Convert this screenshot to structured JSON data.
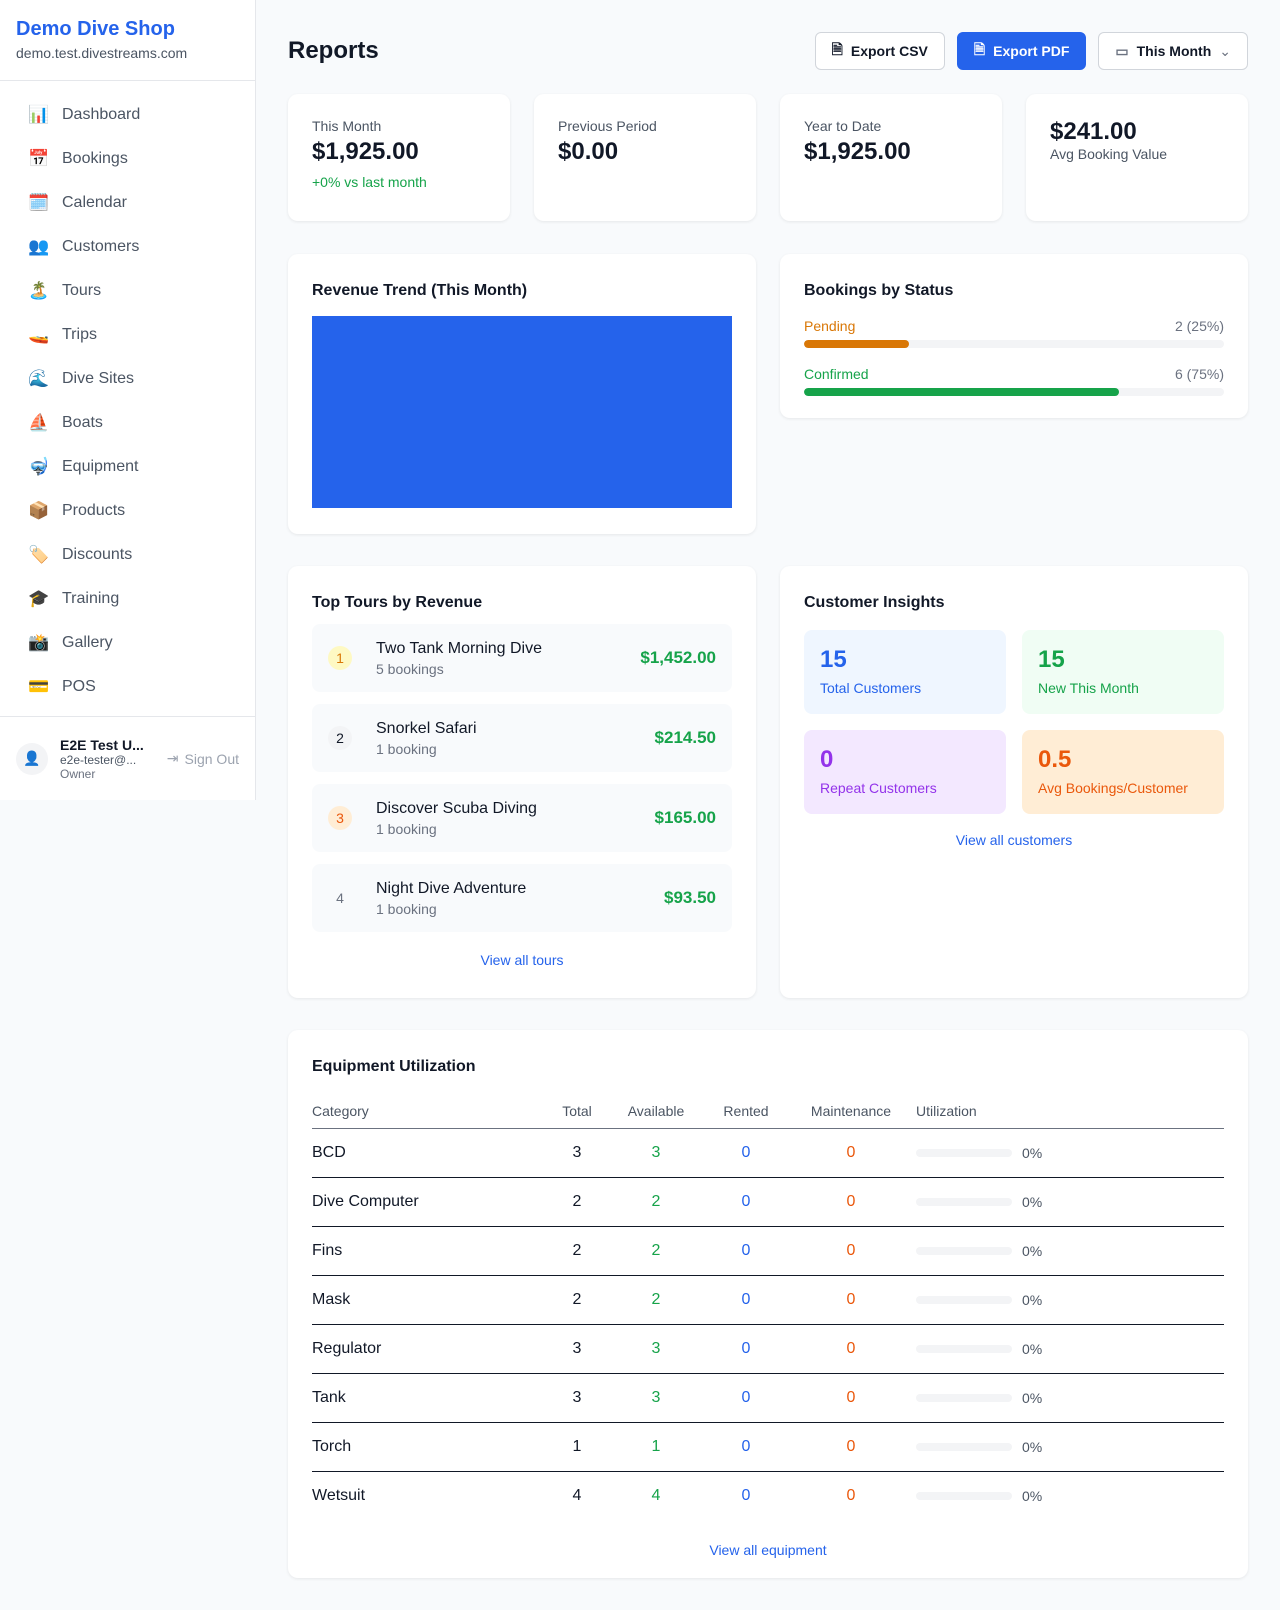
{
  "sidebar": {
    "brand": "Demo Dive Shop",
    "domain": "demo.test.divestreams.com",
    "items": [
      {
        "icon": "📊",
        "label": "Dashboard"
      },
      {
        "icon": "📅",
        "label": "Bookings"
      },
      {
        "icon": "🗓️",
        "label": "Calendar"
      },
      {
        "icon": "👥",
        "label": "Customers"
      },
      {
        "icon": "🏝️",
        "label": "Tours"
      },
      {
        "icon": "🚤",
        "label": "Trips"
      },
      {
        "icon": "🌊",
        "label": "Dive Sites"
      },
      {
        "icon": "⛵",
        "label": "Boats"
      },
      {
        "icon": "🤿",
        "label": "Equipment"
      },
      {
        "icon": "📦",
        "label": "Products"
      },
      {
        "icon": "🏷️",
        "label": "Discounts"
      },
      {
        "icon": "🎓",
        "label": "Training"
      },
      {
        "icon": "📸",
        "label": "Gallery"
      },
      {
        "icon": "💳",
        "label": "POS"
      }
    ],
    "user": {
      "name": "E2E Test U...",
      "email": "e2e-tester@...",
      "role": "Owner",
      "sign_out": "Sign Out"
    }
  },
  "header": {
    "title": "Reports",
    "export_csv": "Export CSV",
    "export_pdf": "Export PDF",
    "period": "This Month"
  },
  "stats": [
    {
      "label": "This Month",
      "value": "$1,925.00",
      "change": "+0% vs last month"
    },
    {
      "label": "Previous Period",
      "value": "$0.00"
    },
    {
      "label": "Year to Date",
      "value": "$1,925.00"
    },
    {
      "value": "$241.00",
      "label": "Avg Booking Value"
    }
  ],
  "revenue": {
    "title": "Revenue Trend (This Month)",
    "color": "#2563eb"
  },
  "status": {
    "title": "Bookings by Status",
    "items": [
      {
        "label": "Pending",
        "value": "2 (25%)",
        "percent": 25,
        "color": "#d97706"
      },
      {
        "label": "Confirmed",
        "value": "6 (75%)",
        "percent": 75,
        "color": "#16a34a"
      }
    ]
  },
  "tours": {
    "title": "Top Tours by Revenue",
    "items": [
      {
        "rank": "1",
        "name": "Two Tank Morning Dive",
        "count": "5 bookings",
        "amount": "$1,452.00"
      },
      {
        "rank": "2",
        "name": "Snorkel Safari",
        "count": "1 booking",
        "amount": "$214.50"
      },
      {
        "rank": "3",
        "name": "Discover Scuba Diving",
        "count": "1 booking",
        "amount": "$165.00"
      },
      {
        "rank": "4",
        "name": "Night Dive Adventure",
        "count": "1 booking",
        "amount": "$93.50"
      }
    ],
    "view_all": "View all tours"
  },
  "insights": {
    "title": "Customer Insights",
    "items": [
      {
        "value": "15",
        "label": "Total Customers"
      },
      {
        "value": "15",
        "label": "New This Month"
      },
      {
        "value": "0",
        "label": "Repeat Customers"
      },
      {
        "value": "0.5",
        "label": "Avg Bookings/Customer"
      }
    ],
    "view_all": "View all customers"
  },
  "equipment": {
    "title": "Equipment Utilization",
    "columns": [
      "Category",
      "Total",
      "Available",
      "Rented",
      "Maintenance",
      "Utilization"
    ],
    "rows": [
      [
        "BCD",
        "3",
        "3",
        "0",
        "0",
        "0%"
      ],
      [
        "Dive Computer",
        "2",
        "2",
        "0",
        "0",
        "0%"
      ],
      [
        "Fins",
        "2",
        "2",
        "0",
        "0",
        "0%"
      ],
      [
        "Mask",
        "2",
        "2",
        "0",
        "0",
        "0%"
      ],
      [
        "Regulator",
        "3",
        "3",
        "0",
        "0",
        "0%"
      ],
      [
        "Tank",
        "3",
        "3",
        "0",
        "0",
        "0%"
      ],
      [
        "Torch",
        "1",
        "1",
        "0",
        "0",
        "0%"
      ],
      [
        "Wetsuit",
        "4",
        "4",
        "0",
        "0",
        "0%"
      ]
    ],
    "view_all": "View all equipment"
  }
}
